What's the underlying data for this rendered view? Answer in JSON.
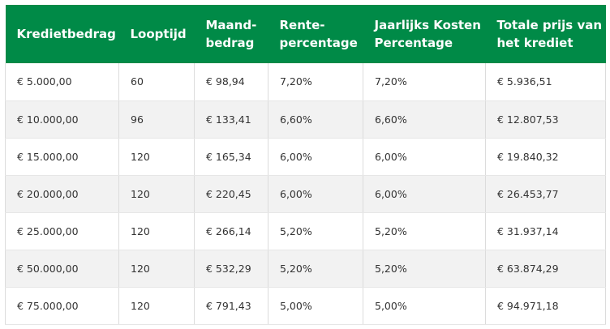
{
  "table": {
    "headers": [
      [
        "Kredietbedrag"
      ],
      [
        "Looptijd"
      ],
      [
        "Maand-",
        "bedrag"
      ],
      [
        "Rente-",
        "percentage"
      ],
      [
        "Jaarlijks Kosten",
        "Percentage"
      ],
      [
        "Totale prijs van",
        "het krediet"
      ]
    ],
    "rows": [
      [
        "€ 5.000,00",
        "60",
        "€ 98,94",
        "7,20%",
        "7,20%",
        "€ 5.936,51"
      ],
      [
        "€ 10.000,00",
        "96",
        "€ 133,41",
        "6,60%",
        "6,60%",
        "€ 12.807,53"
      ],
      [
        "€ 15.000,00",
        "120",
        "€ 165,34",
        "6,00%",
        "6,00%",
        "€ 19.840,32"
      ],
      [
        "€ 20.000,00",
        "120",
        "€ 220,45",
        "6,00%",
        "6,00%",
        "€ 26.453,77"
      ],
      [
        "€ 25.000,00",
        "120",
        "€ 266,14",
        "5,20%",
        "5,20%",
        "€ 31.937,14"
      ],
      [
        "€ 50.000,00",
        "120",
        "€ 532,29",
        "5,20%",
        "5,20%",
        "€ 63.874,29"
      ],
      [
        "€ 75.000,00",
        "120",
        "€ 791,43",
        "5,00%",
        "5,00%",
        "€ 94.971,18"
      ]
    ]
  },
  "colors": {
    "header_bg": "#008a47",
    "header_text": "#ffffff",
    "row_alt_bg": "#f2f2f2"
  }
}
